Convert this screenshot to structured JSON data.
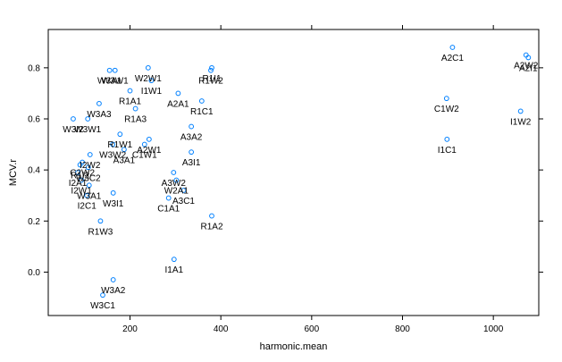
{
  "chart_data": {
    "type": "scatter",
    "title": "",
    "xlabel": "harmonic.mean",
    "ylabel": "MCV.r",
    "xlim": [
      20,
      1100
    ],
    "ylim": [
      -0.17,
      0.95
    ],
    "xticks": [
      200,
      400,
      600,
      800,
      1000
    ],
    "yticks": [
      0.0,
      0.2,
      0.4,
      0.6,
      0.8
    ],
    "ytick_labels": [
      "0.0",
      "0.2",
      "0.4",
      "0.6",
      "0.8"
    ],
    "grid": false,
    "point_color": "#0080ff",
    "points": [
      {
        "label": "A2C1",
        "x": 910,
        "y": 0.88
      },
      {
        "label": "A2W2",
        "x": 1072,
        "y": 0.85
      },
      {
        "label": "A2I1",
        "x": 1077,
        "y": 0.84
      },
      {
        "label": "C1W2",
        "x": 897,
        "y": 0.68
      },
      {
        "label": "I1W2",
        "x": 1060,
        "y": 0.63
      },
      {
        "label": "I1C1",
        "x": 898,
        "y": 0.52
      },
      {
        "label": "W3A1",
        "x": 155,
        "y": 0.79
      },
      {
        "label": "W3W1",
        "x": 167,
        "y": 0.79
      },
      {
        "label": "W2W1",
        "x": 240,
        "y": 0.8
      },
      {
        "label": "I1W1",
        "x": 247,
        "y": 0.75
      },
      {
        "label": "R1W2",
        "x": 378,
        "y": 0.79
      },
      {
        "label": "R1I1",
        "x": 380,
        "y": 0.8
      },
      {
        "label": "R1A1",
        "x": 200,
        "y": 0.71
      },
      {
        "label": "A2A1",
        "x": 306,
        "y": 0.7
      },
      {
        "label": "R1C1",
        "x": 358,
        "y": 0.67
      },
      {
        "label": "W3A3",
        "x": 132,
        "y": 0.66
      },
      {
        "label": "R1A3",
        "x": 212,
        "y": 0.64
      },
      {
        "label": "W3I2",
        "x": 75,
        "y": 0.6
      },
      {
        "label": "W3W1",
        "x": 107,
        "y": 0.6
      },
      {
        "label": "A3A2",
        "x": 335,
        "y": 0.57
      },
      {
        "label": "R1W1",
        "x": 178,
        "y": 0.54
      },
      {
        "label": "W3W2",
        "x": 162,
        "y": 0.5
      },
      {
        "label": "A2W1",
        "x": 242,
        "y": 0.52
      },
      {
        "label": "C1W1",
        "x": 232,
        "y": 0.5
      },
      {
        "label": "A3A1",
        "x": 187,
        "y": 0.48
      },
      {
        "label": "A3I1",
        "x": 335,
        "y": 0.47
      },
      {
        "label": "I2W2",
        "x": 112,
        "y": 0.46
      },
      {
        "label": "C2W2",
        "x": 95,
        "y": 0.43
      },
      {
        "label": "R1I2",
        "x": 90,
        "y": 0.42
      },
      {
        "label": "W3C2",
        "x": 108,
        "y": 0.41
      },
      {
        "label": "A3W2",
        "x": 296,
        "y": 0.39
      },
      {
        "label": "I2A1",
        "x": 85,
        "y": 0.39
      },
      {
        "label": "I2W1",
        "x": 93,
        "y": 0.36
      },
      {
        "label": "W2A1",
        "x": 302,
        "y": 0.36
      },
      {
        "label": "W3A1",
        "x": 110,
        "y": 0.34
      },
      {
        "label": "A3C1",
        "x": 318,
        "y": 0.32
      },
      {
        "label": "W3I1",
        "x": 163,
        "y": 0.31
      },
      {
        "label": "I2C1",
        "x": 105,
        "y": 0.3
      },
      {
        "label": "C1A1",
        "x": 285,
        "y": 0.29
      },
      {
        "label": "R1A2",
        "x": 380,
        "y": 0.22
      },
      {
        "label": "R1W3",
        "x": 135,
        "y": 0.2
      },
      {
        "label": "I1A1",
        "x": 297,
        "y": 0.05
      },
      {
        "label": "W3A2",
        "x": 163,
        "y": -0.03
      },
      {
        "label": "W3C1",
        "x": 140,
        "y": -0.09
      }
    ]
  }
}
